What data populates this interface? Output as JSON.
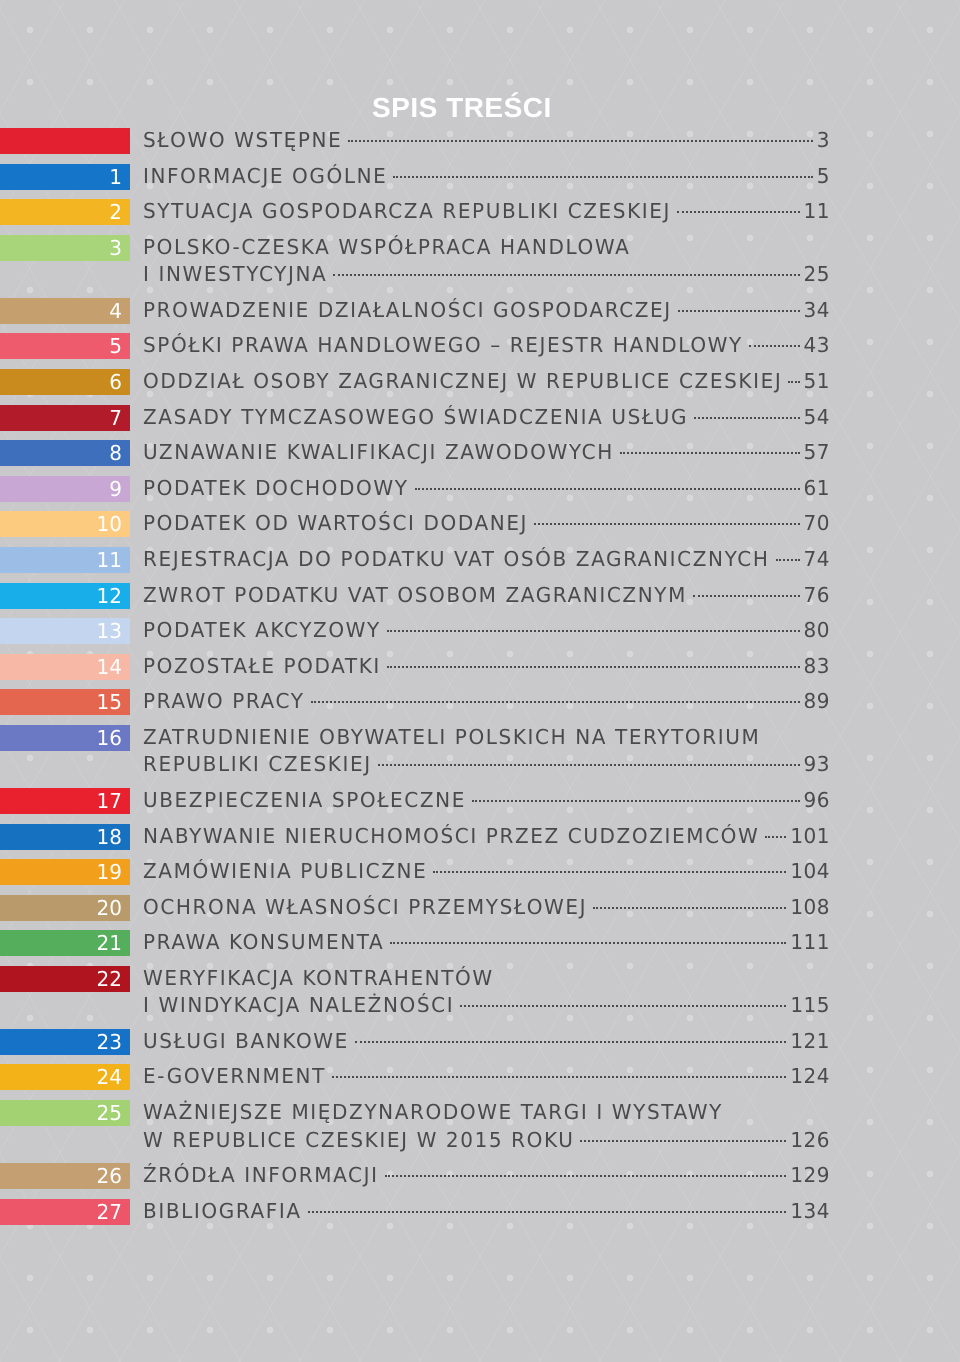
{
  "title": "SPIS TREŚCI",
  "entries": [
    {
      "num": "",
      "title": "SŁOWO WSTĘPNE",
      "title2": "",
      "page": "3",
      "color": "#e2202f"
    },
    {
      "num": "1",
      "title": "INFORMACJE OGÓLNE",
      "title2": "",
      "page": "5",
      "color": "#1475c9"
    },
    {
      "num": "2",
      "title": "SYTUACJA GOSPODARCZA REPUBLIKI CZESKIEJ",
      "title2": "",
      "page": "11",
      "color": "#f3b521"
    },
    {
      "num": "3",
      "title": "POLSKO-CZESKA WSPÓŁPRACA HANDLOWA",
      "title2": "I INWESTYCYJNA",
      "page": "25",
      "color": "#a8d57a"
    },
    {
      "num": "4",
      "title": "PROWADZENIE DZIAŁALNOŚCI GOSPODARCZEJ",
      "title2": "",
      "page": "34",
      "color": "#c5a06e"
    },
    {
      "num": "5",
      "title": "SPÓŁKI PRAWA HANDLOWEGO – REJESTR HANDLOWY",
      "title2": "",
      "page": "43",
      "color": "#ee5b6c"
    },
    {
      "num": "6",
      "title": "ODDZIAŁ OSOBY ZAGRANICZNEJ W REPUBLICE CZESKIEJ",
      "title2": "",
      "page": "51",
      "color": "#c98b1d"
    },
    {
      "num": "7",
      "title": "ZASADY TYMCZASOWEGO ŚWIADCZENIA USŁUG",
      "title2": "",
      "page": "54",
      "color": "#b21b2a"
    },
    {
      "num": "8",
      "title": "UZNAWANIE KWALIFIKACJI ZAWODOWYCH",
      "title2": "",
      "page": "57",
      "color": "#3d6fbd"
    },
    {
      "num": "9",
      "title": "PODATEK DOCHODOWY",
      "title2": "",
      "page": "61",
      "color": "#c9a7d5"
    },
    {
      "num": "10",
      "title": "PODATEK OD WARTOŚCI DODANEJ",
      "title2": "",
      "page": "70",
      "color": "#fdcb7f"
    },
    {
      "num": "11",
      "title": "REJESTRACJA DO PODATKU VAT OSÓB ZAGRANICZNYCH",
      "title2": "",
      "page": "74",
      "color": "#9cbde6"
    },
    {
      "num": "12",
      "title": "ZWROT PODATKU VAT OSOBOM ZAGRANICZNYM",
      "title2": "",
      "page": "76",
      "color": "#17aee9"
    },
    {
      "num": "13",
      "title": "PODATEK AKCYZOWY",
      "title2": "",
      "page": "80",
      "color": "#c4d6ef"
    },
    {
      "num": "14",
      "title": "POZOSTAŁE PODATKI",
      "title2": "",
      "page": "83",
      "color": "#f7b9a5"
    },
    {
      "num": "15",
      "title": "PRAWO PRACY",
      "title2": "",
      "page": "89",
      "color": "#e5664f"
    },
    {
      "num": "16",
      "title": "ZATRUDNIENIE OBYWATELI POLSKICH NA TERYTORIUM",
      "title2": "REPUBLIKI CZESKIEJ",
      "page": "93",
      "color": "#6b78c4"
    },
    {
      "num": "17",
      "title": "UBEZPIECZENIA SPOŁECZNE",
      "title2": "",
      "page": "96",
      "color": "#e9202e"
    },
    {
      "num": "18",
      "title": "NABYWANIE NIERUCHOMOŚCI PRZEZ CUDZOZIEMCÓW",
      "title2": "",
      "page": "101",
      "color": "#1672c0"
    },
    {
      "num": "19",
      "title": "ZAMÓWIENIA PUBLICZNE",
      "title2": "",
      "page": "104",
      "color": "#f29f1b"
    },
    {
      "num": "20",
      "title": "OCHRONA WŁASNOŚCI PRZEMYSŁOWEJ",
      "title2": "",
      "page": "108",
      "color": "#b99a6a"
    },
    {
      "num": "21",
      "title": "PRAWA KONSUMENTA",
      "title2": "",
      "page": "111",
      "color": "#55ae5c"
    },
    {
      "num": "22",
      "title": "WERYFIKACJA KONTRAHENTÓW",
      "title2": "I WINDYKACJA NALEŻNOŚCI",
      "page": "115",
      "color": "#b0151f"
    },
    {
      "num": "23",
      "title": "USŁUGI BANKOWE",
      "title2": "",
      "page": "121",
      "color": "#1572c7"
    },
    {
      "num": "24",
      "title": "E-GOVERNMENT",
      "title2": "",
      "page": "124",
      "color": "#f2b218"
    },
    {
      "num": "25",
      "title": "WAŻNIEJSZE MIĘDZYNARODOWE TARGI I WYSTAWY",
      "title2": "W REPUBLICE CZESKIEJ W 2015 ROKU",
      "page": "126",
      "color": "#a3d273"
    },
    {
      "num": "26",
      "title": "ŹRÓDŁA INFORMACJI",
      "title2": "",
      "page": "129",
      "color": "#c39f72"
    },
    {
      "num": "27",
      "title": "BIBLIOGRAFIA",
      "title2": "",
      "page": "134",
      "color": "#ed5568"
    }
  ]
}
